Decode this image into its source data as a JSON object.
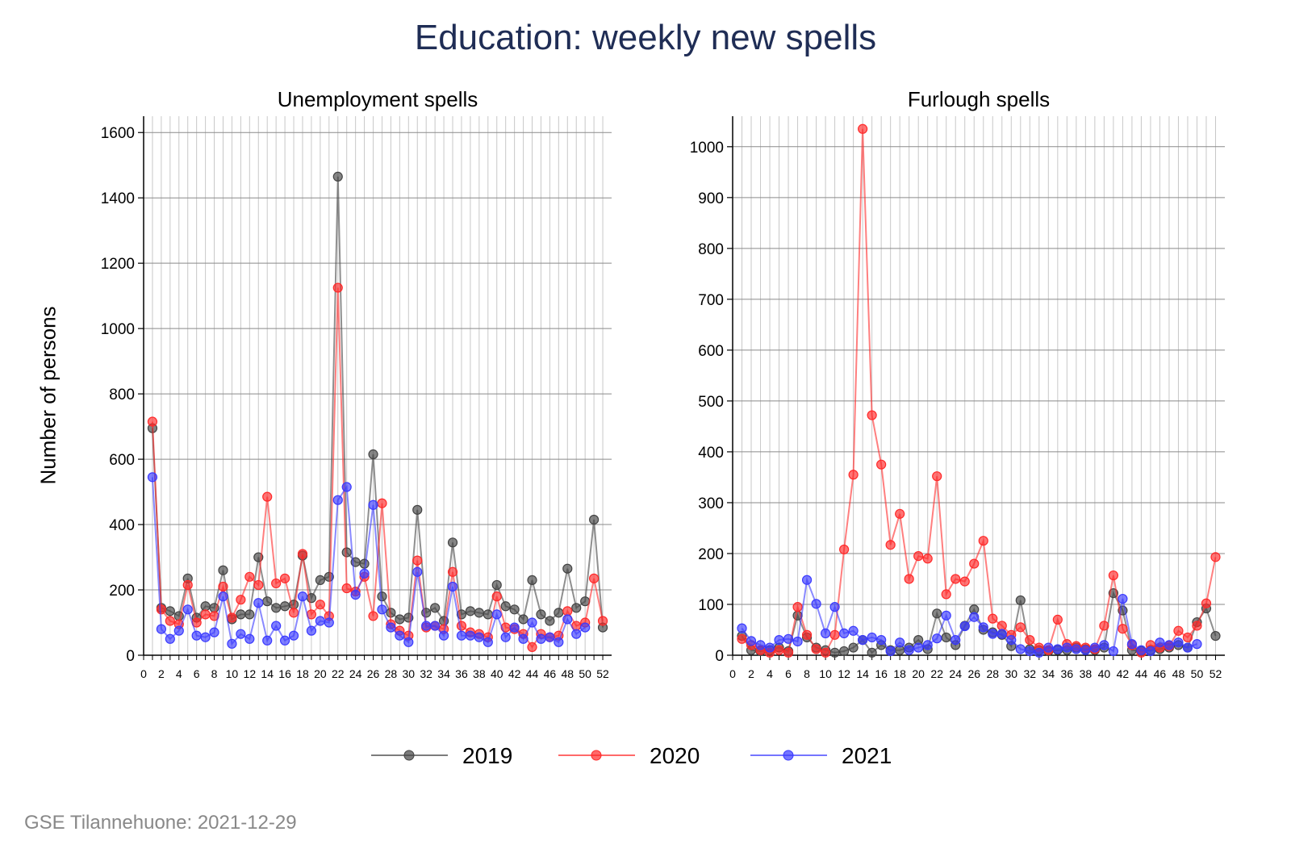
{
  "title": "Education: weekly new spells",
  "ylabel": "Number of persons",
  "footer": "GSE Tilannehuone: 2021-12-29",
  "legend": [
    {
      "name": "2019",
      "color": "#444444"
    },
    {
      "name": "2020",
      "color": "#ff2a2a"
    },
    {
      "name": "2021",
      "color": "#3a3aff"
    }
  ],
  "chart_data": [
    {
      "type": "line",
      "title": "Unemployment spells",
      "xlabel": "",
      "ylabel": "Number of persons",
      "xlim": [
        0,
        53
      ],
      "ylim": [
        0,
        1650
      ],
      "xticks": [
        0,
        2,
        4,
        6,
        8,
        10,
        12,
        14,
        16,
        18,
        20,
        22,
        24,
        26,
        28,
        30,
        32,
        34,
        36,
        38,
        40,
        42,
        44,
        46,
        48,
        50,
        52
      ],
      "yticks": [
        0,
        200,
        400,
        600,
        800,
        1000,
        1200,
        1400,
        1600
      ],
      "grid": true,
      "x": [
        1,
        2,
        3,
        4,
        5,
        6,
        7,
        8,
        9,
        10,
        11,
        12,
        13,
        14,
        15,
        16,
        17,
        18,
        19,
        20,
        21,
        22,
        23,
        24,
        25,
        26,
        27,
        28,
        29,
        30,
        31,
        32,
        33,
        34,
        35,
        36,
        37,
        38,
        39,
        40,
        41,
        42,
        43,
        44,
        45,
        46,
        47,
        48,
        49,
        50,
        51,
        52
      ],
      "series": [
        {
          "name": "2019",
          "values": [
            695,
            145,
            135,
            120,
            235,
            115,
            150,
            145,
            260,
            110,
            125,
            125,
            300,
            165,
            145,
            150,
            155,
            305,
            175,
            230,
            240,
            1465,
            315,
            285,
            280,
            615,
            180,
            130,
            110,
            115,
            445,
            130,
            145,
            105,
            345,
            125,
            135,
            130,
            125,
            215,
            150,
            140,
            110,
            230,
            125,
            105,
            130,
            265,
            145,
            165,
            415,
            85
          ]
        },
        {
          "name": "2020",
          "values": [
            715,
            140,
            105,
            95,
            215,
            100,
            125,
            120,
            210,
            115,
            170,
            240,
            215,
            485,
            220,
            235,
            130,
            310,
            125,
            155,
            120,
            1125,
            205,
            195,
            240,
            120,
            465,
            95,
            75,
            60,
            290,
            85,
            90,
            80,
            255,
            90,
            70,
            65,
            55,
            180,
            85,
            80,
            65,
            25,
            65,
            55,
            60,
            135,
            90,
            100,
            235,
            105
          ]
        },
        {
          "name": "2021",
          "values": [
            545,
            80,
            50,
            75,
            140,
            60,
            55,
            70,
            180,
            35,
            65,
            50,
            160,
            45,
            90,
            45,
            60,
            180,
            75,
            105,
            100,
            475,
            515,
            185,
            250,
            460,
            140,
            85,
            60,
            40,
            255,
            90,
            90,
            60,
            210,
            60,
            60,
            55,
            40,
            125,
            55,
            85,
            50,
            100,
            50,
            55,
            40,
            110,
            65,
            85,
            null,
            null
          ]
        }
      ]
    },
    {
      "type": "line",
      "title": "Furlough spells",
      "xlabel": "",
      "ylabel": "",
      "xlim": [
        0,
        53
      ],
      "ylim": [
        0,
        1060
      ],
      "xticks": [
        0,
        2,
        4,
        6,
        8,
        10,
        12,
        14,
        16,
        18,
        20,
        22,
        24,
        26,
        28,
        30,
        32,
        34,
        36,
        38,
        40,
        42,
        44,
        46,
        48,
        50,
        52
      ],
      "yticks": [
        0,
        100,
        200,
        300,
        400,
        500,
        600,
        700,
        800,
        900,
        1000
      ],
      "grid": true,
      "x": [
        1,
        2,
        3,
        4,
        5,
        6,
        7,
        8,
        9,
        10,
        11,
        12,
        13,
        14,
        15,
        16,
        17,
        18,
        19,
        20,
        21,
        22,
        23,
        24,
        25,
        26,
        27,
        28,
        29,
        30,
        31,
        32,
        33,
        34,
        35,
        36,
        37,
        38,
        39,
        40,
        41,
        42,
        43,
        44,
        45,
        46,
        47,
        48,
        49,
        50,
        51,
        52
      ],
      "series": [
        {
          "name": "2019",
          "values": [
            38,
            10,
            8,
            10,
            15,
            8,
            78,
            35,
            15,
            10,
            5,
            8,
            15,
            30,
            5,
            20,
            10,
            10,
            15,
            30,
            12,
            82,
            35,
            20,
            58,
            90,
            50,
            45,
            40,
            18,
            108,
            12,
            10,
            8,
            10,
            10,
            15,
            12,
            10,
            15,
            122,
            88,
            10,
            8,
            10,
            12,
            15,
            20,
            15,
            65,
            92,
            38
          ]
        },
        {
          "name": "2020",
          "values": [
            32,
            20,
            10,
            5,
            10,
            5,
            95,
            40,
            12,
            5,
            40,
            208,
            355,
            1035,
            472,
            375,
            217,
            278,
            150,
            195,
            190,
            352,
            120,
            150,
            145,
            180,
            225,
            72,
            58,
            40,
            55,
            30,
            15,
            10,
            70,
            22,
            18,
            15,
            12,
            58,
            157,
            52,
            20,
            5,
            20,
            15,
            18,
            48,
            35,
            58,
            102,
            193
          ]
        },
        {
          "name": "2021",
          "values": [
            53,
            28,
            20,
            15,
            30,
            32,
            27,
            148,
            101,
            43,
            95,
            43,
            48,
            30,
            35,
            30,
            8,
            25,
            10,
            15,
            20,
            33,
            78,
            30,
            57,
            75,
            55,
            42,
            42,
            30,
            12,
            8,
            5,
            15,
            12,
            15,
            12,
            10,
            15,
            20,
            8,
            111,
            22,
            10,
            8,
            25,
            20,
            25,
            15,
            22,
            null,
            null
          ]
        }
      ]
    }
  ]
}
